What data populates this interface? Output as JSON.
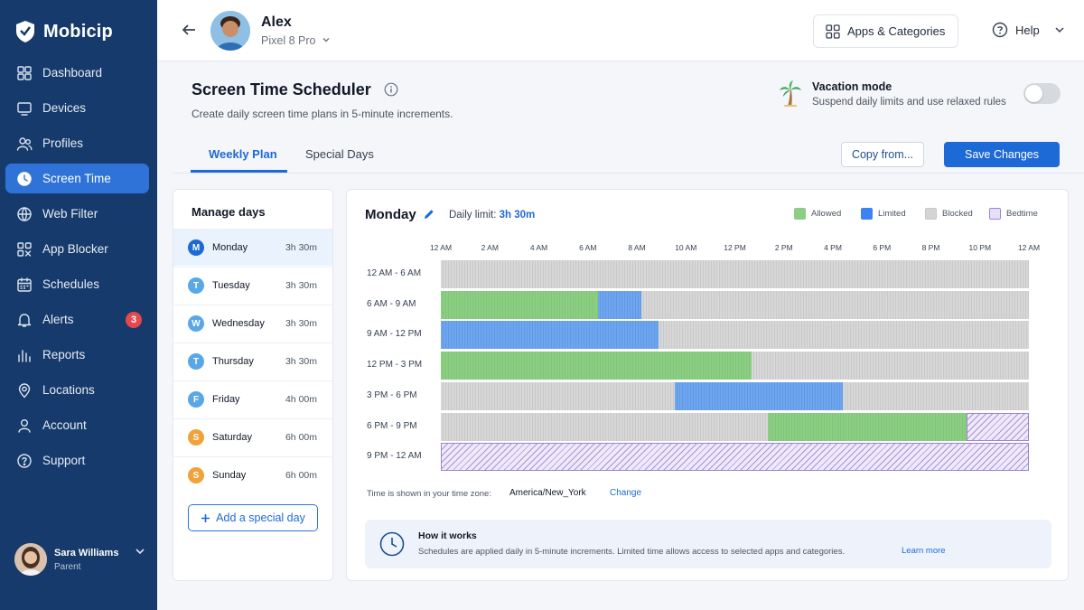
{
  "app": {
    "name": "Mobicip"
  },
  "sidebar": {
    "items": [
      {
        "label": "Dashboard",
        "icon": "dashboard-icon"
      },
      {
        "label": "Devices",
        "icon": "monitor-icon"
      },
      {
        "label": "Profiles",
        "icon": "users-icon"
      },
      {
        "label": "Screen Time",
        "icon": "clock-icon",
        "active": true
      },
      {
        "label": "Web Filter",
        "icon": "globe-icon"
      },
      {
        "label": "App Blocker",
        "icon": "app-grid-icon"
      },
      {
        "label": "Schedules",
        "icon": "calendar-icon"
      },
      {
        "label": "Alerts",
        "icon": "bell-icon",
        "badge": "3"
      },
      {
        "label": "Reports",
        "icon": "bar-chart-icon"
      },
      {
        "label": "Locations",
        "icon": "location-pin-icon"
      },
      {
        "label": "Account",
        "icon": "user-icon"
      },
      {
        "label": "Support",
        "icon": "help-circle-icon"
      }
    ],
    "user": {
      "name": "Sara Williams",
      "role": "Parent"
    }
  },
  "header": {
    "child_name": "Alex",
    "device": "Pixel 8 Pro",
    "apps_button": "Apps & Categories",
    "help": "Help"
  },
  "page": {
    "title": "Screen Time Scheduler",
    "subtitle": "Create daily screen time plans in 5-minute increments.",
    "vacation": {
      "title": "Vacation mode",
      "subtitle": "Suspend daily limits and use relaxed rules",
      "enabled": false
    },
    "tabs": [
      {
        "label": "Weekly Plan",
        "active": true
      },
      {
        "label": "Special Days"
      }
    ],
    "copy_button": "Copy from...",
    "save_button": "Save Changes"
  },
  "days_panel": {
    "title": "Manage days",
    "days": [
      {
        "initial": "M",
        "name": "Monday",
        "hours": "3h 30m",
        "color": "#1d6ad6",
        "active": true
      },
      {
        "initial": "T",
        "name": "Tuesday",
        "hours": "3h 30m",
        "color": "#5aa7e8"
      },
      {
        "initial": "W",
        "name": "Wednesday",
        "hours": "3h 30m",
        "color": "#5aa7e8"
      },
      {
        "initial": "T",
        "name": "Thursday",
        "hours": "3h 30m",
        "color": "#5aa7e8"
      },
      {
        "initial": "F",
        "name": "Friday",
        "hours": "4h 00m",
        "color": "#5aa7e8"
      },
      {
        "initial": "S",
        "name": "Saturday",
        "hours": "6h 00m",
        "color": "#f0a33a"
      },
      {
        "initial": "S",
        "name": "Sunday",
        "hours": "6h 00m",
        "color": "#f0a33a"
      }
    ],
    "add_button": "Add a special day"
  },
  "schedule": {
    "day": "Monday",
    "limit_label": "Daily limit:",
    "limit_value": "3h 30m",
    "legend": [
      {
        "label": "Allowed",
        "color": "#8ccf84"
      },
      {
        "label": "Limited",
        "color": "#3b82f6"
      },
      {
        "label": "Blocked",
        "color": "#d4d4d4"
      },
      {
        "label": "Bedtime",
        "color": "#e7defa"
      }
    ],
    "time_ticks": [
      "12 AM",
      "2 AM",
      "4 AM",
      "6 AM",
      "8 AM",
      "10 AM",
      "12 PM",
      "2 PM",
      "4 PM",
      "6 PM",
      "8 PM",
      "10 PM",
      "12 AM"
    ],
    "tick_values_hours": [
      0,
      2,
      4,
      6,
      8,
      10,
      12,
      14,
      16,
      18,
      20,
      22,
      24
    ],
    "rows": [
      {
        "label": "12 AM - 6 AM",
        "segments": [
          {
            "type": "blocked",
            "start": 0,
            "end": 24
          }
        ]
      },
      {
        "label": "6 AM - 9 AM",
        "segments": [
          {
            "type": "allowed",
            "start": 0,
            "end": 6.4
          },
          {
            "type": "limited",
            "start": 6.4,
            "end": 8.2
          },
          {
            "type": "blocked",
            "start": 8.2,
            "end": 24
          }
        ]
      },
      {
        "label": "9 AM - 12 PM",
        "segments": [
          {
            "type": "limited",
            "start": 0,
            "end": 8.9
          },
          {
            "type": "blocked",
            "start": 8.9,
            "end": 24
          }
        ]
      },
      {
        "label": "12 PM - 3 PM",
        "segments": [
          {
            "type": "allowed",
            "start": 0,
            "end": 12.7
          },
          {
            "type": "blocked",
            "start": 12.7,
            "end": 24
          }
        ]
      },
      {
        "label": "3 PM - 6 PM",
        "segments": [
          {
            "type": "blocked",
            "start": 0,
            "end": 9.55
          },
          {
            "type": "limited",
            "start": 9.55,
            "end": 16.4
          },
          {
            "type": "blocked",
            "start": 16.4,
            "end": 24
          }
        ]
      },
      {
        "label": "6 PM - 9 PM",
        "segments": [
          {
            "type": "blocked",
            "start": 0,
            "end": 13.35
          },
          {
            "type": "allowed",
            "start": 13.35,
            "end": 21.45
          },
          {
            "type": "bedtime",
            "start": 21.45,
            "end": 24
          }
        ]
      },
      {
        "label": "9 PM - 12 AM",
        "segments": [
          {
            "type": "bedtime",
            "start": 0,
            "end": 24
          }
        ]
      }
    ],
    "timezone_label": "Time is shown in your time zone:",
    "timezone": "America/New_York",
    "timezone_change": "Change",
    "how": {
      "title": "How it works",
      "text": "Schedules are applied daily in 5-minute increments. Limited time allows access to selected apps and categories.",
      "link": "Learn more"
    }
  }
}
